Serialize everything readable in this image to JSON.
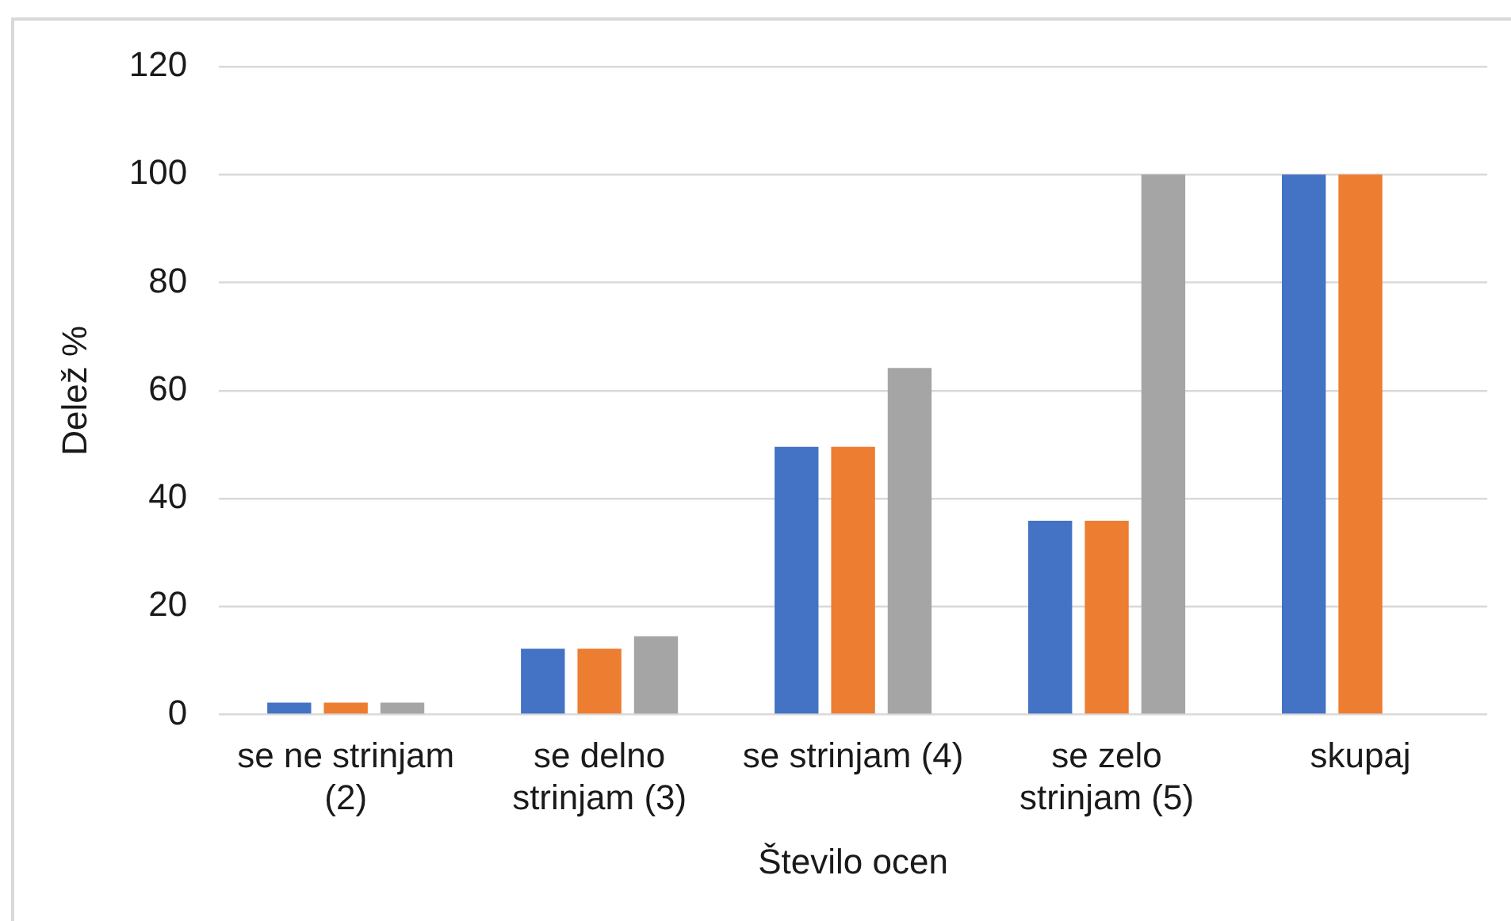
{
  "chart_data": {
    "type": "bar",
    "xlabel": "Število ocen",
    "ylabel": "Delež %",
    "categories": [
      "se ne strinjam (2)",
      "se delno strinjam (3)",
      "se strinjam (4)",
      "se zelo strinjam (5)",
      "skupaj"
    ],
    "series": [
      {
        "color": "#4472c4",
        "values": [
          2.2,
          12.2,
          49.6,
          35.9,
          100
        ]
      },
      {
        "color": "#ed7d31",
        "values": [
          2.2,
          12.2,
          49.6,
          35.9,
          100
        ]
      },
      {
        "color": "#a5a5a5",
        "values": [
          2.2,
          14.5,
          64.2,
          100,
          null
        ]
      }
    ],
    "ylim": [
      0,
      120
    ],
    "yticks": [
      0,
      20,
      40,
      60,
      80,
      100,
      120
    ],
    "grid": "y"
  }
}
